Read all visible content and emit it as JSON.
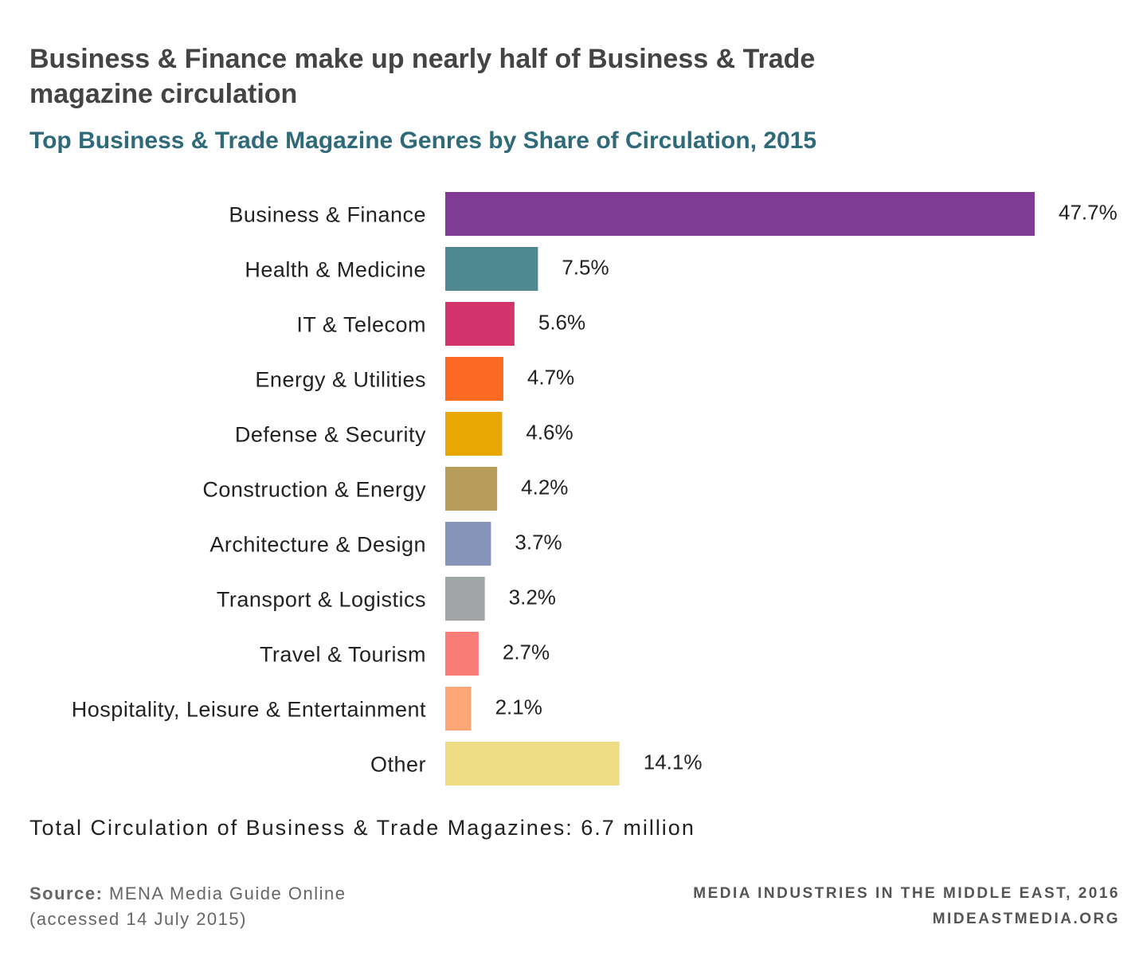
{
  "title": "Business & Finance make up nearly half of Business & Trade magazine circulation",
  "subtitle": "Top Business & Trade Magazine Genres by Share of Circulation, 2015",
  "total_note": "Total Circulation of Business & Trade Magazines: 6.7 million",
  "source": {
    "label": "Source:",
    "text": "MENA Media Guide Online",
    "accessed": "(accessed 14 July 2015)"
  },
  "credit": {
    "line1": "MEDIA INDUSTRIES IN THE MIDDLE EAST, 2016",
    "line2": "MIDEASTMEDIA.ORG"
  },
  "chart_data": {
    "type": "bar",
    "orientation": "horizontal",
    "title": "Top Business & Trade Magazine Genres by Share of Circulation, 2015",
    "categories": [
      "Business & Finance",
      "Health & Medicine",
      "IT & Telecom",
      "Energy & Utilities",
      "Defense & Security",
      "Construction & Energy",
      "Architecture & Design",
      "Transport & Logistics",
      "Travel & Tourism",
      "Hospitality, Leisure & Entertainment",
      "Other"
    ],
    "values": [
      47.7,
      7.5,
      5.6,
      4.7,
      4.6,
      4.2,
      3.7,
      3.2,
      2.7,
      2.1,
      14.1
    ],
    "value_labels": [
      "47.7%",
      "7.5%",
      "5.6%",
      "4.7%",
      "4.6%",
      "4.2%",
      "3.7%",
      "3.2%",
      "2.7%",
      "2.1%",
      "14.1%"
    ],
    "colors": [
      "#7f3b95",
      "#4f8891",
      "#d4346b",
      "#fb6a22",
      "#e8a703",
      "#b89c5c",
      "#8594b8",
      "#a1a5a5",
      "#fa7c77",
      "#fca775",
      "#eedd84"
    ],
    "xlabel": "",
    "ylabel": "",
    "grid": false,
    "legend": "none"
  }
}
